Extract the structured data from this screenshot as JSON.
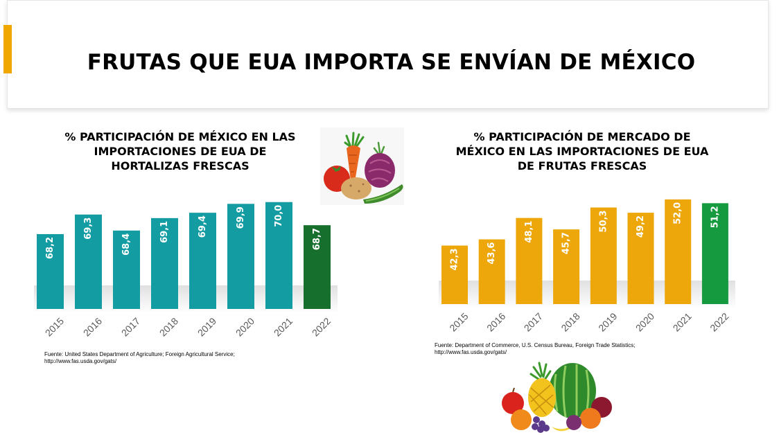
{
  "page": {
    "title": "FRUTAS QUE EUA IMPORTA SE ENVÍAN DE MÉXICO",
    "accent_color": "#F0A800"
  },
  "chart_data": [
    {
      "type": "bar",
      "title_lines": [
        "% PARTICIPACIÓN DE MÉXICO EN LAS",
        "IMPORTACIONES DE EUA DE",
        "HORTALIZAS FRESCAS"
      ],
      "categories": [
        "2015",
        "2016",
        "2017",
        "2018",
        "2019",
        "2020",
        "2021",
        "2022"
      ],
      "values": [
        68.2,
        69.3,
        68.4,
        69.1,
        69.4,
        69.9,
        70.0,
        68.7
      ],
      "value_labels": [
        "68,2",
        "69,3",
        "68,4",
        "69,1",
        "69,4",
        "69,9",
        "70,0",
        "68,7"
      ],
      "bar_color": "#139DA3",
      "highlight_color": "#166F2D",
      "highlight_index": 7,
      "ylim": [
        64,
        71
      ],
      "xlabel": "",
      "ylabel": "",
      "grid": false,
      "source_lines": [
        "Fuente: United States Department of Agriculture; Foreign Agricultural Service;",
        "http://www.fas.usda.gov/gats/"
      ]
    },
    {
      "type": "bar",
      "title_lines": [
        "% PARTICIPACIÓN DE MERCADO DE",
        "MÉXICO EN LAS IMPORTACIONES DE EUA",
        "DE FRUTAS FRESCAS"
      ],
      "categories": [
        "2015",
        "2016",
        "2017",
        "2018",
        "2019",
        "2020",
        "2021",
        "2022"
      ],
      "values": [
        42.3,
        43.6,
        48.1,
        45.7,
        50.3,
        49.2,
        52.0,
        51.2
      ],
      "value_labels": [
        "42,3",
        "43,6",
        "48,1",
        "45,7",
        "50,3",
        "49,2",
        "52,0",
        "51,2"
      ],
      "bar_color": "#EDA70A",
      "highlight_color": "#159A3F",
      "highlight_index": 7,
      "ylim": [
        30,
        53
      ],
      "xlabel": "",
      "ylabel": "",
      "grid": false,
      "source_lines": [
        "Fuente: Department of Commerce, U.S. Census Bureau, Foreign Trade Statistics;",
        "http://www.fas.usda.gov/gats/"
      ]
    }
  ]
}
